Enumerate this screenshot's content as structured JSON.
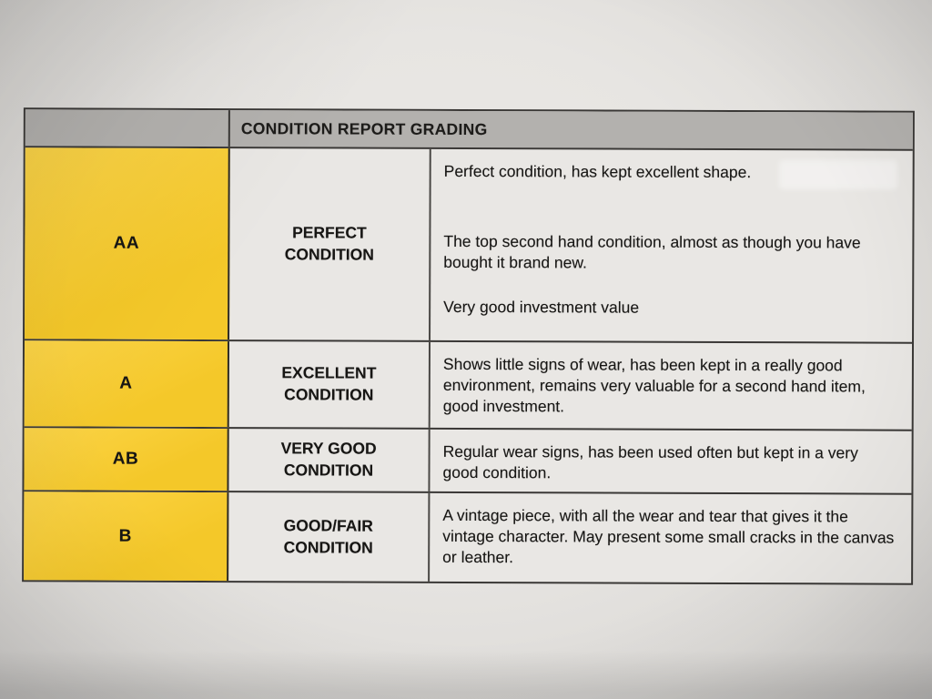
{
  "table": {
    "title": "CONDITION REPORT GRADING",
    "rows": [
      {
        "grade": "AA",
        "condition": "PERFECT CONDITION",
        "description_paragraphs": [
          "Perfect condition, has kept excellent shape.",
          "The top second hand condition, almost as though you have bought it brand new.",
          "Very good investment value"
        ]
      },
      {
        "grade": "A",
        "condition": "EXCELLENT CONDITION",
        "description_paragraphs": [
          "Shows little signs of wear, has been kept in a really good environment, remains very valuable for a second hand item, good investment."
        ]
      },
      {
        "grade": "AB",
        "condition": "VERY GOOD CONDITION",
        "description_paragraphs": [
          "Regular wear signs, has been used often but kept in a very good condition."
        ]
      },
      {
        "grade": "B",
        "condition": "GOOD/FAIR CONDITION",
        "description_paragraphs": [
          "A vintage piece, with all the wear and tear that gives it the vintage character. May present some small cracks in the canvas or leather."
        ]
      }
    ]
  },
  "colors": {
    "grade_yellow": "#fcce2a",
    "header_gray": "#b3b1ae",
    "line_dark": "#3a3836",
    "paper": "#e9e7e4",
    "ink": "#171614"
  }
}
